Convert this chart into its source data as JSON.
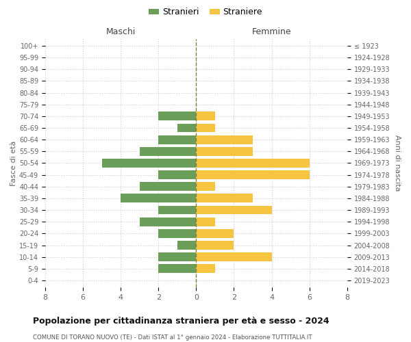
{
  "age_groups": [
    "0-4",
    "5-9",
    "10-14",
    "15-19",
    "20-24",
    "25-29",
    "30-34",
    "35-39",
    "40-44",
    "45-49",
    "50-54",
    "55-59",
    "60-64",
    "65-69",
    "70-74",
    "75-79",
    "80-84",
    "85-89",
    "90-94",
    "95-99",
    "100+"
  ],
  "birth_years": [
    "2019-2023",
    "2014-2018",
    "2009-2013",
    "2004-2008",
    "1999-2003",
    "1994-1998",
    "1989-1993",
    "1984-1988",
    "1979-1983",
    "1974-1978",
    "1969-1973",
    "1964-1968",
    "1959-1963",
    "1954-1958",
    "1949-1953",
    "1944-1948",
    "1939-1943",
    "1934-1938",
    "1929-1933",
    "1924-1928",
    "≤ 1923"
  ],
  "males": [
    0,
    2,
    2,
    1,
    2,
    3,
    2,
    4,
    3,
    2,
    5,
    3,
    2,
    1,
    2,
    0,
    0,
    0,
    0,
    0,
    0
  ],
  "females": [
    0,
    1,
    4,
    2,
    2,
    1,
    4,
    3,
    1,
    6,
    6,
    3,
    3,
    1,
    1,
    0,
    0,
    0,
    0,
    0,
    0
  ],
  "male_color": "#6a9e5a",
  "female_color": "#f5c542",
  "zero_line_color": "#808040",
  "grid_color": "#cccccc",
  "title": "Popolazione per cittadinanza straniera per età e sesso - 2024",
  "subtitle": "COMUNE DI TORANO NUOVO (TE) - Dati ISTAT al 1° gennaio 2024 - Elaborazione TUTTITALIA.IT",
  "ylabel_left": "Fasce di età",
  "ylabel_right": "Anni di nascita",
  "label_maschi": "Maschi",
  "label_femmine": "Femmine",
  "legend_stranieri": "Stranieri",
  "legend_straniere": "Straniere",
  "xlim": 8,
  "background_color": "#ffffff"
}
